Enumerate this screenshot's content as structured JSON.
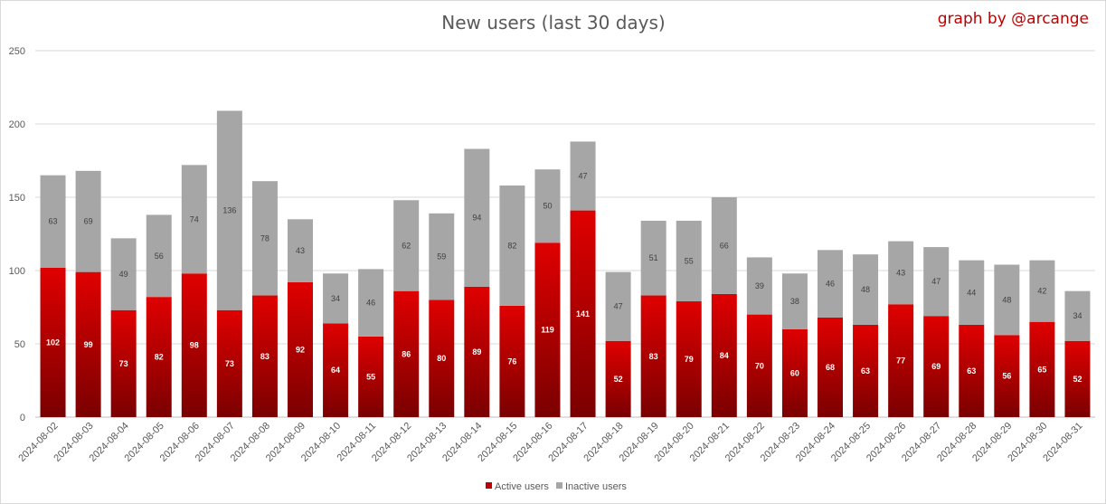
{
  "chart_data": {
    "type": "bar",
    "stacked": true,
    "title": "New users (last 30 days)",
    "credit": "graph by @arcange",
    "categories": [
      "2024-08-02",
      "2024-08-03",
      "2024-08-04",
      "2024-08-05",
      "2024-08-06",
      "2024-08-07",
      "2024-08-08",
      "2024-08-09",
      "2024-08-10",
      "2024-08-11",
      "2024-08-12",
      "2024-08-13",
      "2024-08-14",
      "2024-08-15",
      "2024-08-16",
      "2024-08-17",
      "2024-08-18",
      "2024-08-19",
      "2024-08-20",
      "2024-08-21",
      "2024-08-22",
      "2024-08-23",
      "2024-08-24",
      "2024-08-25",
      "2024-08-26",
      "2024-08-27",
      "2024-08-28",
      "2024-08-29",
      "2024-08-30",
      "2024-08-31"
    ],
    "series": [
      {
        "name": "Active users",
        "color": "#c00000",
        "values": [
          102,
          99,
          73,
          82,
          98,
          73,
          83,
          92,
          64,
          55,
          86,
          80,
          89,
          76,
          119,
          141,
          52,
          83,
          79,
          84,
          70,
          60,
          68,
          63,
          77,
          69,
          63,
          56,
          65,
          52
        ]
      },
      {
        "name": "Inactive users",
        "color": "#a6a6a6",
        "values": [
          63,
          69,
          49,
          56,
          74,
          136,
          78,
          43,
          34,
          46,
          62,
          59,
          94,
          82,
          50,
          47,
          47,
          51,
          55,
          66,
          39,
          38,
          46,
          48,
          43,
          47,
          44,
          48,
          42,
          34
        ]
      }
    ],
    "ylim": [
      0,
      250
    ],
    "yticks": [
      "0",
      "50",
      "100",
      "150",
      "200",
      "250"
    ],
    "grid": true,
    "legend_position": "bottom"
  }
}
